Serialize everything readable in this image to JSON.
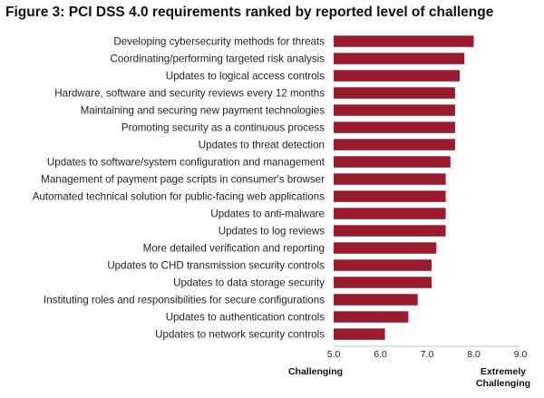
{
  "chart_data": {
    "type": "bar",
    "orientation": "horizontal",
    "title": "Figure 3: PCI DSS 4.0 requirements ranked by reported level of challenge",
    "categories": [
      "Developing cybersecurity methods for threats",
      "Coordinating/performing targeted risk analysis",
      "Updates to logical access controls",
      "Hardware, software and security reviews every 12 months",
      "Maintaining and securing new payment technologies",
      "Promoting security as a continuous process",
      "Updates to threat detection",
      "Updates to software/system configuration and management",
      "Management of payment page scripts in consumer's browser",
      "Automated technical solution for public-facing web applications",
      "Updates to anti-malware",
      "Updates to log reviews",
      "More detailed verification and reporting",
      "Updates to CHD transmission security controls",
      "Updates to data storage security",
      "Instituting roles and responsibilities for secure configurations",
      "Updates to authentication controls",
      "Updates to network security controls"
    ],
    "values": [
      8.0,
      7.8,
      7.7,
      7.6,
      7.6,
      7.6,
      7.6,
      7.5,
      7.4,
      7.4,
      7.4,
      7.4,
      7.2,
      7.1,
      7.1,
      6.8,
      6.6,
      6.1
    ],
    "xlim": [
      5.0,
      9.0
    ],
    "xticks": [
      "5.0",
      "6.0",
      "7.0",
      "8.0",
      "9.0"
    ],
    "scale_low_label": "Challenging",
    "scale_high_label_line1": "Extremely",
    "scale_high_label_line2": "Challenging",
    "bar_color": "#9b1b2e",
    "grid": false
  }
}
